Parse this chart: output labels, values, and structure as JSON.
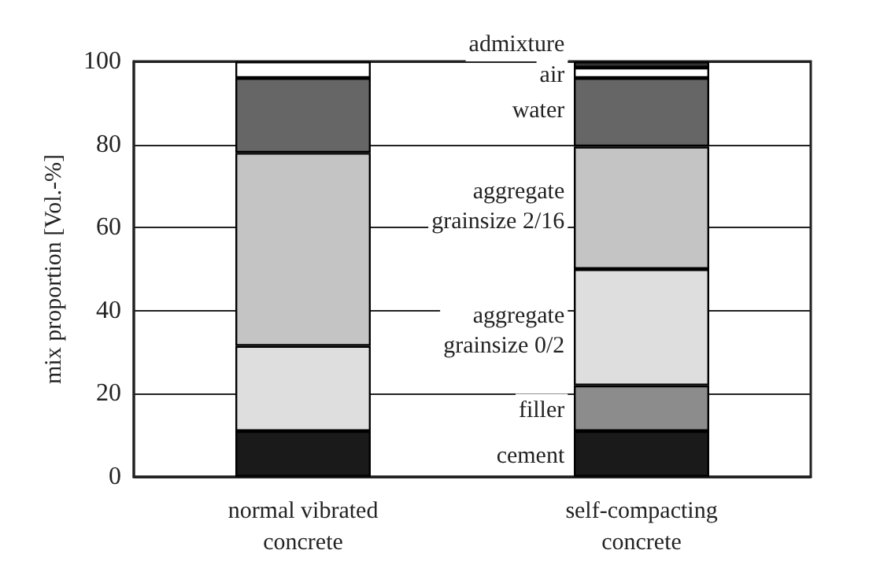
{
  "chart_data": {
    "type": "bar",
    "stacked": true,
    "ylabel": "mix proportion [Vol.-%]",
    "categories": [
      "normal vibrated\nconcrete",
      "self-compacting\nconcrete"
    ],
    "ylim": [
      0,
      100
    ],
    "yticks": [
      0,
      20,
      40,
      60,
      80,
      100
    ],
    "grid": "y",
    "legend": false,
    "series": [
      {
        "name": "cement",
        "color": "#1a1a1a",
        "values": [
          11,
          11
        ]
      },
      {
        "name": "filler",
        "color": "#8c8c8c",
        "values": [
          0,
          11
        ]
      },
      {
        "name": "aggregate\ngrainsize 0/2",
        "color": "#dedede",
        "values": [
          20.5,
          28
        ]
      },
      {
        "name": "aggregate\ngrainsize 2/16",
        "color": "#c4c4c4",
        "values": [
          46.5,
          29.5
        ]
      },
      {
        "name": "water",
        "color": "#666666",
        "values": [
          18,
          16.5
        ]
      },
      {
        "name": "air",
        "color": "#ffffff",
        "values": [
          4,
          2.5
        ]
      },
      {
        "name": "admixture",
        "color": "#333333",
        "values": [
          0,
          1.5
        ]
      }
    ]
  }
}
